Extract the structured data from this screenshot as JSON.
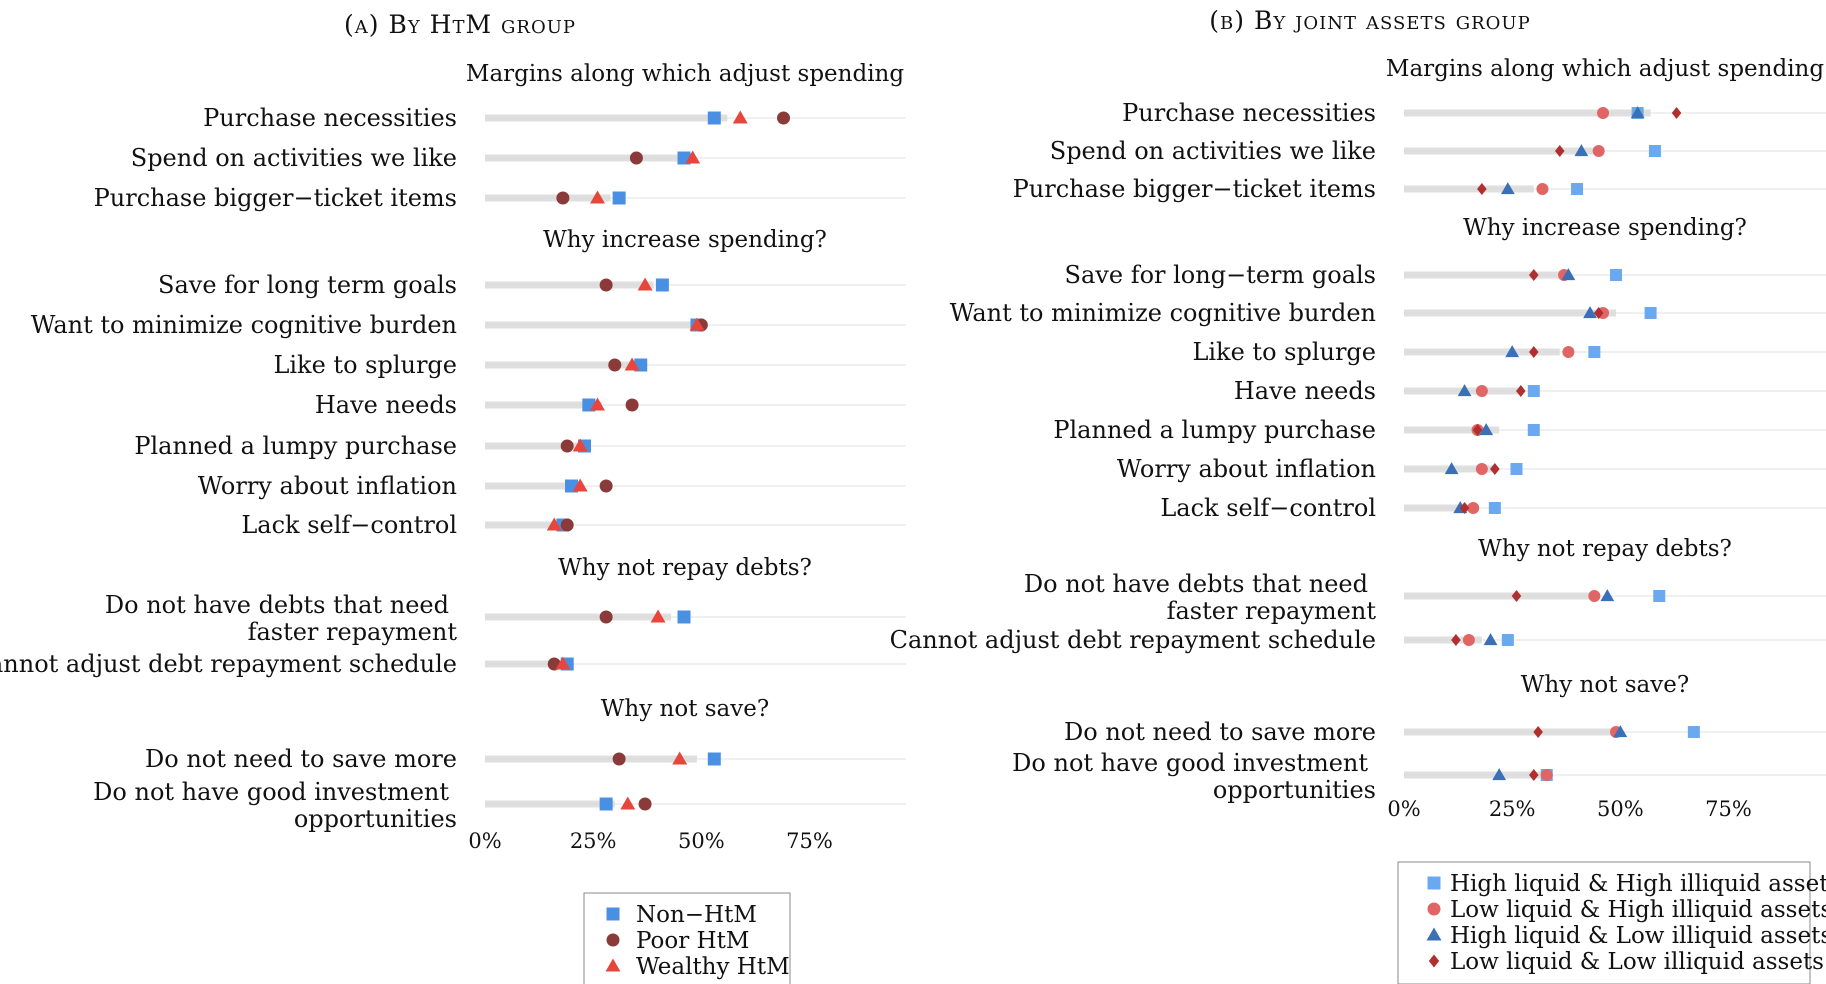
{
  "chart_data": [
    {
      "type": "scatter",
      "title": "(a) By HtM group",
      "xlim": [
        0,
        95
      ],
      "xticks": [
        "0%",
        "25%",
        "50%",
        "75%"
      ],
      "xtick_values": [
        0,
        25,
        50,
        75
      ],
      "legend_position": "bottom",
      "series": [
        {
          "name": "Non−HtM",
          "color": "#4a90e2",
          "marker": "square"
        },
        {
          "name": "Poor HtM",
          "color": "#8b3a3a",
          "marker": "circle"
        },
        {
          "name": "Wealthy HtM",
          "color": "#e8453c",
          "marker": "triangle"
        }
      ],
      "sections": [
        {
          "title": "Margins along which adjust spending",
          "items": [
            {
              "label": [
                "Purchase necessities"
              ],
              "total": 56,
              "values": [
                53,
                69,
                59
              ]
            },
            {
              "label": [
                "Spend on activities we like"
              ],
              "total": 48,
              "values": [
                46,
                35,
                48
              ]
            },
            {
              "label": [
                "Purchase bigger−ticket items"
              ],
              "total": 29,
              "values": [
                31,
                18,
                26
              ]
            }
          ]
        },
        {
          "title": "Why increase spending?",
          "items": [
            {
              "label": [
                "Save for long term goals"
              ],
              "total": 39,
              "values": [
                41,
                28,
                37
              ]
            },
            {
              "label": [
                "Want to minimize cognitive burden"
              ],
              "total": 49,
              "values": [
                49,
                50,
                49
              ]
            },
            {
              "label": [
                "Like to splurge"
              ],
              "total": 36,
              "values": [
                36,
                30,
                34
              ]
            },
            {
              "label": [
                "Have needs"
              ],
              "total": 27,
              "values": [
                24,
                34,
                26
              ]
            },
            {
              "label": [
                "Planned a lumpy purchase"
              ],
              "total": 22,
              "values": [
                23,
                19,
                22
              ]
            },
            {
              "label": [
                "Worry about inflation"
              ],
              "total": 21,
              "values": [
                20,
                28,
                22
              ]
            },
            {
              "label": [
                "Lack self−control"
              ],
              "total": 18,
              "values": [
                18,
                19,
                16
              ]
            }
          ]
        },
        {
          "title": "Why not repay debts?",
          "items": [
            {
              "label": [
                "Do not have debts that need",
                "faster repayment"
              ],
              "total": 43,
              "values": [
                46,
                28,
                40
              ]
            },
            {
              "label": [
                "Cannot adjust debt repayment schedule"
              ],
              "total": 18,
              "values": [
                19,
                16,
                18
              ]
            }
          ]
        },
        {
          "title": "Why not save?",
          "items": [
            {
              "label": [
                "Do not need to save more"
              ],
              "total": 49,
              "values": [
                53,
                31,
                45
              ]
            },
            {
              "label": [
                "Do not have good investment",
                "opportunities"
              ],
              "total": 30,
              "values": [
                28,
                37,
                33
              ]
            }
          ]
        }
      ]
    },
    {
      "type": "scatter",
      "title": "(b) By joint assets group",
      "xlim": [
        0,
        95
      ],
      "xticks": [
        "0%",
        "25%",
        "50%",
        "75%"
      ],
      "xtick_values": [
        0,
        25,
        50,
        75
      ],
      "legend_position": "bottom",
      "series": [
        {
          "name": "High liquid & High illiquid assets",
          "color": "#6aa8f0",
          "marker": "square"
        },
        {
          "name": "Low liquid & High illiquid assets",
          "color": "#e06666",
          "marker": "circle"
        },
        {
          "name": "High liquid & Low illiquid assets",
          "color": "#3b6fb6",
          "marker": "triangle"
        },
        {
          "name": "Low liquid & Low illiquid assets",
          "color": "#b03030",
          "marker": "diamond"
        }
      ],
      "sections": [
        {
          "title": "Margins along which adjust spending",
          "items": [
            {
              "label": [
                "Purchase necessities"
              ],
              "total": 57,
              "values": [
                54,
                46,
                54,
                63
              ]
            },
            {
              "label": [
                "Spend on activities we like"
              ],
              "total": 45,
              "values": [
                58,
                45,
                41,
                36
              ]
            },
            {
              "label": [
                "Purchase bigger−ticket items"
              ],
              "total": 30,
              "values": [
                40,
                32,
                24,
                18
              ]
            }
          ]
        },
        {
          "title": "Why increase spending?",
          "items": [
            {
              "label": [
                "Save for long−term goals"
              ],
              "total": 38,
              "values": [
                49,
                37,
                38,
                30
              ]
            },
            {
              "label": [
                "Want to minimize cognitive burden"
              ],
              "total": 49,
              "values": [
                57,
                46,
                43,
                45
              ]
            },
            {
              "label": [
                "Like to splurge"
              ],
              "total": 36,
              "values": [
                44,
                38,
                25,
                30
              ]
            },
            {
              "label": [
                "Have needs"
              ],
              "total": 27,
              "values": [
                30,
                18,
                14,
                27
              ]
            },
            {
              "label": [
                "Planned a lumpy purchase"
              ],
              "total": 22,
              "values": [
                30,
                17,
                19,
                17
              ]
            },
            {
              "label": [
                "Worry about inflation"
              ],
              "total": 21,
              "values": [
                26,
                18,
                11,
                21
              ]
            },
            {
              "label": [
                "Lack self−control"
              ],
              "total": 17,
              "values": [
                21,
                16,
                13,
                14
              ]
            }
          ]
        },
        {
          "title": "Why not repay debts?",
          "items": [
            {
              "label": [
                "Do not have debts that need",
                "faster repayment"
              ],
              "total": 44,
              "values": [
                59,
                44,
                47,
                26
              ]
            },
            {
              "label": [
                "Cannot adjust debt repayment schedule"
              ],
              "total": 18,
              "values": [
                24,
                15,
                20,
                12
              ]
            }
          ]
        },
        {
          "title": "Why not save?",
          "items": [
            {
              "label": [
                "Do not need to save more"
              ],
              "total": 49,
              "values": [
                67,
                49,
                50,
                31
              ]
            },
            {
              "label": [
                "Do not have good investment",
                "opportunities"
              ],
              "total": 32,
              "values": [
                33,
                33,
                22,
                30
              ]
            }
          ]
        }
      ]
    }
  ]
}
